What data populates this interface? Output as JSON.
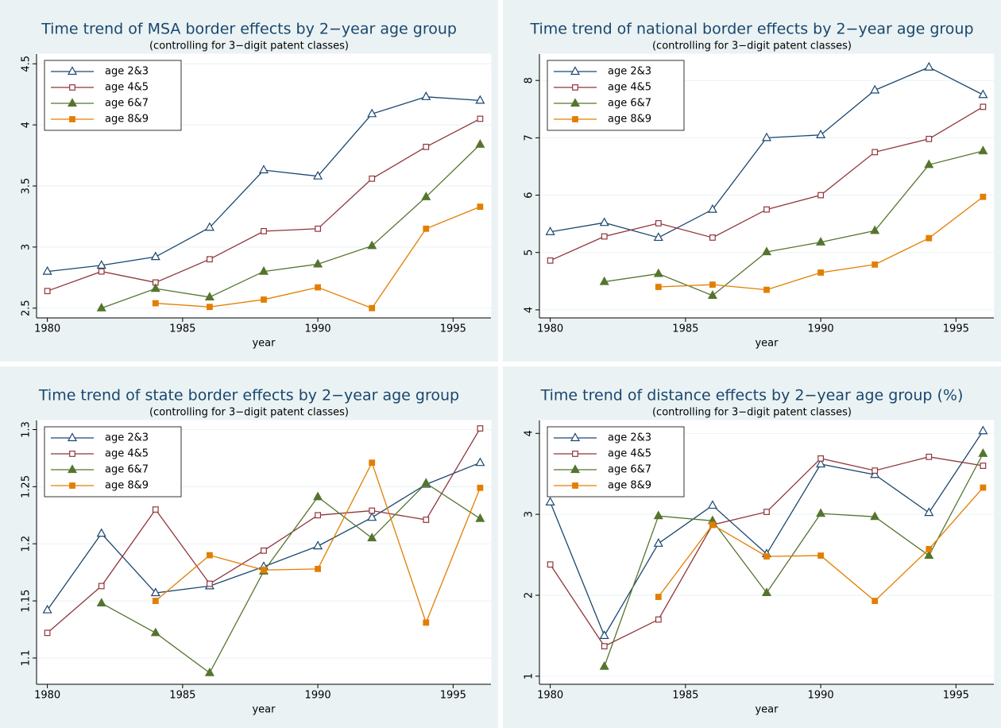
{
  "chart_data": [
    {
      "type": "line",
      "title": "Time trend of MSA border effects by 2−year age group",
      "subtitle": "(controlling for 3−digit patent classes)",
      "x_label": "year",
      "x": [
        1980,
        1982,
        1984,
        1986,
        1988,
        1990,
        1992,
        1994,
        1996
      ],
      "xlim": [
        1979.6,
        1996.4
      ],
      "xticks": [
        1980,
        1985,
        1990,
        1995
      ],
      "ylim": [
        2.42,
        4.58
      ],
      "yticks": [
        2.5,
        3,
        3.5,
        4,
        4.5
      ],
      "grid": true,
      "legend": "top-left",
      "series": [
        {
          "name": "age 2&3",
          "color": "#1a476f",
          "marker": "triangle-hollow",
          "values": [
            2.8,
            2.85,
            2.92,
            3.16,
            3.63,
            3.58,
            4.09,
            4.23,
            4.2
          ]
        },
        {
          "name": "age 4&5",
          "color": "#90353b",
          "marker": "square-hollow",
          "values": [
            2.64,
            2.8,
            2.71,
            2.9,
            3.13,
            3.15,
            3.56,
            3.82,
            4.05
          ]
        },
        {
          "name": "age 6&7",
          "color": "#55752f",
          "marker": "triangle",
          "values": [
            null,
            2.5,
            2.66,
            2.59,
            2.8,
            2.86,
            3.01,
            3.41,
            3.84
          ]
        },
        {
          "name": "age 8&9",
          "color": "#e37e00",
          "marker": "square",
          "values": [
            null,
            null,
            2.54,
            2.51,
            2.57,
            2.67,
            2.5,
            3.15,
            3.33
          ]
        }
      ]
    },
    {
      "type": "line",
      "title": "Time trend of national border effects by 2−year age group",
      "subtitle": "(controlling for 3−digit patent classes)",
      "x_label": "year",
      "x": [
        1980,
        1982,
        1984,
        1986,
        1988,
        1990,
        1992,
        1994,
        1996
      ],
      "xlim": [
        1979.6,
        1996.4
      ],
      "xticks": [
        1980,
        1985,
        1990,
        1995
      ],
      "ylim": [
        3.86,
        8.46
      ],
      "yticks": [
        4,
        5,
        6,
        7,
        8
      ],
      "grid": true,
      "legend": "top-left",
      "series": [
        {
          "name": "age 2&3",
          "color": "#1a476f",
          "marker": "triangle-hollow",
          "values": [
            5.36,
            5.52,
            5.26,
            5.75,
            7.0,
            7.05,
            7.83,
            8.23,
            7.75
          ]
        },
        {
          "name": "age 4&5",
          "color": "#90353b",
          "marker": "square-hollow",
          "values": [
            4.86,
            5.28,
            5.51,
            5.26,
            5.75,
            6.0,
            6.75,
            6.98,
            7.54
          ]
        },
        {
          "name": "age 6&7",
          "color": "#55752f",
          "marker": "triangle",
          "values": [
            null,
            4.49,
            4.63,
            4.25,
            5.01,
            5.18,
            5.38,
            6.53,
            6.77
          ]
        },
        {
          "name": "age 8&9",
          "color": "#e37e00",
          "marker": "square",
          "values": [
            null,
            null,
            4.4,
            4.44,
            4.35,
            4.65,
            4.79,
            5.25,
            5.97
          ]
        }
      ]
    },
    {
      "type": "line",
      "title": "Time trend of state border effects by 2−year age group",
      "subtitle": "(controlling for 3−digit patent classes)",
      "x_label": "year",
      "x": [
        1980,
        1982,
        1984,
        1986,
        1988,
        1990,
        1992,
        1994,
        1996
      ],
      "xlim": [
        1979.6,
        1996.4
      ],
      "xticks": [
        1980,
        1985,
        1990,
        1995
      ],
      "ylim": [
        1.077,
        1.308
      ],
      "yticks": [
        1.1,
        1.15,
        1.2,
        1.25,
        1.3
      ],
      "grid": true,
      "legend": "top-left",
      "series": [
        {
          "name": "age 2&3",
          "color": "#1a476f",
          "marker": "triangle-hollow",
          "values": [
            1.142,
            1.209,
            1.157,
            1.163,
            1.18,
            1.198,
            1.223,
            1.252,
            1.271
          ]
        },
        {
          "name": "age 4&5",
          "color": "#90353b",
          "marker": "square-hollow",
          "values": [
            1.122,
            1.163,
            1.23,
            1.165,
            1.194,
            1.225,
            1.229,
            1.221,
            1.301
          ]
        },
        {
          "name": "age 6&7",
          "color": "#55752f",
          "marker": "triangle",
          "values": [
            null,
            1.148,
            1.122,
            1.087,
            1.176,
            1.241,
            1.205,
            1.253,
            1.222
          ]
        },
        {
          "name": "age 8&9",
          "color": "#e37e00",
          "marker": "square",
          "values": [
            null,
            null,
            1.15,
            1.19,
            1.177,
            1.178,
            1.271,
            1.131,
            1.249
          ]
        }
      ]
    },
    {
      "type": "line",
      "title": "Time trend of distance effects by 2−year age group (%)",
      "subtitle": "(controlling for 3−digit patent classes)",
      "x_label": "year",
      "x": [
        1980,
        1982,
        1984,
        1986,
        1988,
        1990,
        1992,
        1994,
        1996
      ],
      "xlim": [
        1979.6,
        1996.4
      ],
      "xticks": [
        1980,
        1985,
        1990,
        1995
      ],
      "ylim": [
        0.9,
        4.16
      ],
      "yticks": [
        1,
        2,
        3,
        4
      ],
      "grid": true,
      "legend": "top-left",
      "series": [
        {
          "name": "age 2&3",
          "color": "#1a476f",
          "marker": "triangle-hollow",
          "values": [
            3.15,
            1.5,
            2.64,
            3.11,
            2.51,
            3.62,
            3.49,
            3.02,
            4.03
          ]
        },
        {
          "name": "age 4&5",
          "color": "#90353b",
          "marker": "square-hollow",
          "values": [
            2.38,
            1.37,
            1.7,
            2.87,
            3.03,
            3.69,
            3.54,
            3.71,
            3.6
          ]
        },
        {
          "name": "age 6&7",
          "color": "#55752f",
          "marker": "triangle",
          "values": [
            null,
            1.12,
            2.98,
            2.92,
            2.03,
            3.01,
            2.97,
            2.49,
            3.75
          ]
        },
        {
          "name": "age 8&9",
          "color": "#e37e00",
          "marker": "square",
          "values": [
            null,
            null,
            1.98,
            2.87,
            2.48,
            2.49,
            1.93,
            2.57,
            3.33
          ]
        }
      ]
    }
  ]
}
